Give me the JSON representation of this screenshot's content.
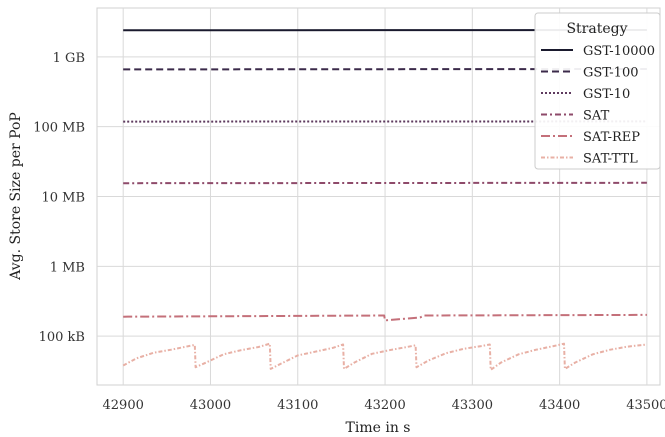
{
  "chart_data": {
    "type": "line",
    "xlabel": "Time in s",
    "ylabel": "Avg. Store Size per PoP",
    "yscale": "log",
    "xlim": [
      42870,
      43515
    ],
    "ylim_bytes": [
      20000,
      5000000000
    ],
    "grid": true,
    "x_ticks": [
      42900,
      43000,
      43100,
      43200,
      43300,
      43400,
      43500
    ],
    "y_ticks": [
      {
        "value": 100000,
        "label": "100 kB"
      },
      {
        "value": 1000000,
        "label": "1 MB"
      },
      {
        "value": 10000000,
        "label": "10 MB"
      },
      {
        "value": 100000000,
        "label": "100 MB"
      },
      {
        "value": 1000000000,
        "label": "1 GB"
      }
    ],
    "legend": {
      "title": "Strategy",
      "position": "top-right"
    },
    "series": [
      {
        "name": "GST-10000",
        "color": "#1a1a2e",
        "dash": "solid",
        "width": 2,
        "points": [
          [
            42900,
            2400000000
          ],
          [
            43500,
            2420000000
          ]
        ]
      },
      {
        "name": "GST-100",
        "color": "#3b2a4a",
        "dash": "dashed",
        "width": 2,
        "points": [
          [
            42900,
            660000000
          ],
          [
            43500,
            670000000
          ]
        ]
      },
      {
        "name": "GST-10",
        "color": "#5e3a5e",
        "dash": "dotted",
        "width": 2,
        "points": [
          [
            42900,
            118000000
          ],
          [
            43500,
            119000000
          ]
        ]
      },
      {
        "name": "SAT",
        "color": "#8e4a6a",
        "dash": "dashdot",
        "width": 2,
        "points": [
          [
            42900,
            15500000
          ],
          [
            43500,
            15700000
          ]
        ]
      },
      {
        "name": "SAT-REP",
        "color": "#c4707a",
        "dash": "longdashdot",
        "width": 2,
        "points": [
          [
            42900,
            190000
          ],
          [
            43100,
            195000
          ],
          [
            43199,
            198000
          ],
          [
            43200,
            168000
          ],
          [
            43240,
            185000
          ],
          [
            43245,
            198000
          ],
          [
            43500,
            202000
          ]
        ]
      },
      {
        "name": "SAT-TTL",
        "color": "#e8b0a5",
        "dash": "dashdot2",
        "width": 2,
        "points": [
          [
            42900,
            38000
          ],
          [
            42915,
            48000
          ],
          [
            42935,
            58000
          ],
          [
            42955,
            64000
          ],
          [
            42975,
            72000
          ],
          [
            42982,
            75000
          ],
          [
            42983,
            36000
          ],
          [
            42995,
            42000
          ],
          [
            43015,
            55000
          ],
          [
            43035,
            63000
          ],
          [
            43055,
            70000
          ],
          [
            43068,
            78000
          ],
          [
            43069,
            34000
          ],
          [
            43080,
            40000
          ],
          [
            43100,
            53000
          ],
          [
            43120,
            60000
          ],
          [
            43140,
            68000
          ],
          [
            43152,
            76000
          ],
          [
            43153,
            34000
          ],
          [
            43165,
            42000
          ],
          [
            43185,
            56000
          ],
          [
            43205,
            63000
          ],
          [
            43225,
            70000
          ],
          [
            43235,
            74000
          ],
          [
            43236,
            36000
          ],
          [
            43250,
            45000
          ],
          [
            43270,
            57000
          ],
          [
            43290,
            66000
          ],
          [
            43310,
            72000
          ],
          [
            43320,
            76000
          ],
          [
            43321,
            33000
          ],
          [
            43333,
            42000
          ],
          [
            43353,
            55000
          ],
          [
            43373,
            64000
          ],
          [
            43393,
            72000
          ],
          [
            43405,
            78000
          ],
          [
            43406,
            34000
          ],
          [
            43418,
            42000
          ],
          [
            43438,
            55000
          ],
          [
            43458,
            64000
          ],
          [
            43478,
            71000
          ],
          [
            43500,
            76000
          ]
        ]
      }
    ]
  }
}
